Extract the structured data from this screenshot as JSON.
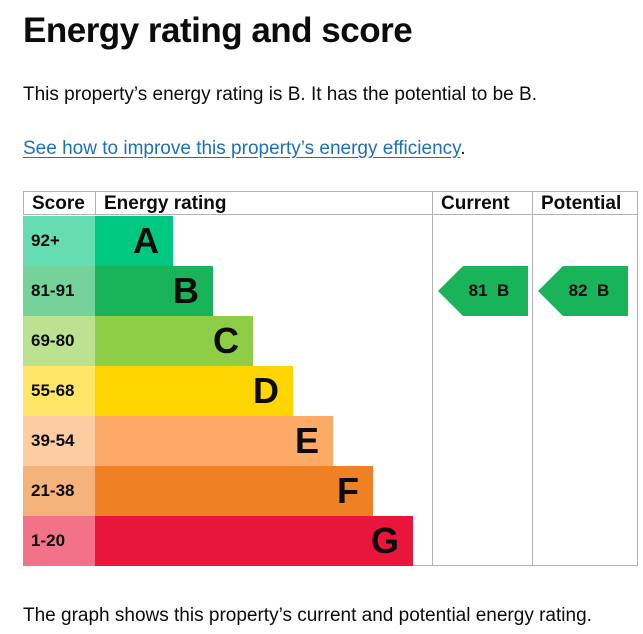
{
  "page": {
    "title": "Energy rating and score",
    "intro": "This property’s energy rating is B. It has the potential to be B.",
    "link_text": "See how to improve this property’s energy efficiency",
    "link_suffix": ".",
    "footer": "The graph shows this property’s current and potential energy rating."
  },
  "table": {
    "headers": {
      "score": "Score",
      "rating": "Energy rating",
      "current": "Current",
      "potential": "Potential"
    },
    "bands": [
      {
        "score": "92+",
        "letter": "A",
        "bar_color": "#00c781",
        "score_bg": "#66dcb2"
      },
      {
        "score": "81-91",
        "letter": "B",
        "bar_color": "#19b459",
        "score_bg": "#75d29b"
      },
      {
        "score": "69-80",
        "letter": "C",
        "bar_color": "#8dce46",
        "score_bg": "#bbe290"
      },
      {
        "score": "55-68",
        "letter": "D",
        "bar_color": "#ffd500",
        "score_bg": "#ffe666"
      },
      {
        "score": "39-54",
        "letter": "E",
        "bar_color": "#fcaa65",
        "score_bg": "#fdcca3"
      },
      {
        "score": "21-38",
        "letter": "F",
        "bar_color": "#ef8023",
        "score_bg": "#f5b37b"
      },
      {
        "score": "1-20",
        "letter": "G",
        "bar_color": "#e9153b",
        "score_bg": "#f27389"
      }
    ],
    "current": {
      "label": "81  B",
      "band": "B",
      "color": "#19b459"
    },
    "potential": {
      "label": "82  B",
      "band": "B",
      "color": "#19b459"
    }
  }
}
